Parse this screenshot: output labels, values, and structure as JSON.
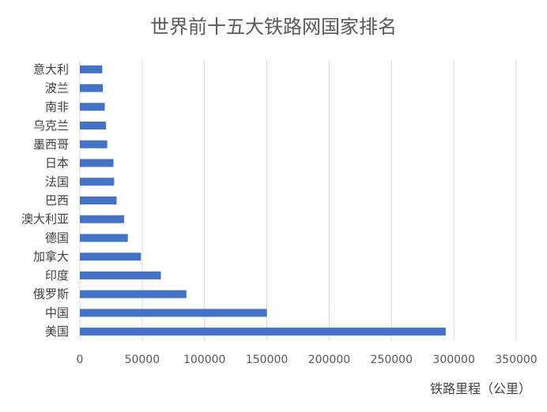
{
  "chart_data": {
    "type": "bar",
    "orientation": "horizontal",
    "title": "世界前十五大铁路网国家排名",
    "xlabel": "铁路里程（公里）",
    "ylabel": "",
    "xlim": [
      0,
      350000
    ],
    "x_ticks": [
      "0",
      "50000",
      "100000",
      "150000",
      "200000",
      "250000",
      "300000",
      "350000"
    ],
    "categories": [
      "意大利",
      "波兰",
      "南非",
      "乌克兰",
      "墨西哥",
      "日本",
      "法国",
      "巴西",
      "澳大利亚",
      "德国",
      "加拿大",
      "印度",
      "俄罗斯",
      "中国",
      "美国"
    ],
    "values": [
      18000,
      18500,
      20000,
      21000,
      22000,
      27000,
      27500,
      29500,
      35500,
      38500,
      49000,
      65000,
      85500,
      150000,
      293500
    ],
    "bar_color": "#4472C4",
    "grid": true,
    "legend": "none"
  }
}
